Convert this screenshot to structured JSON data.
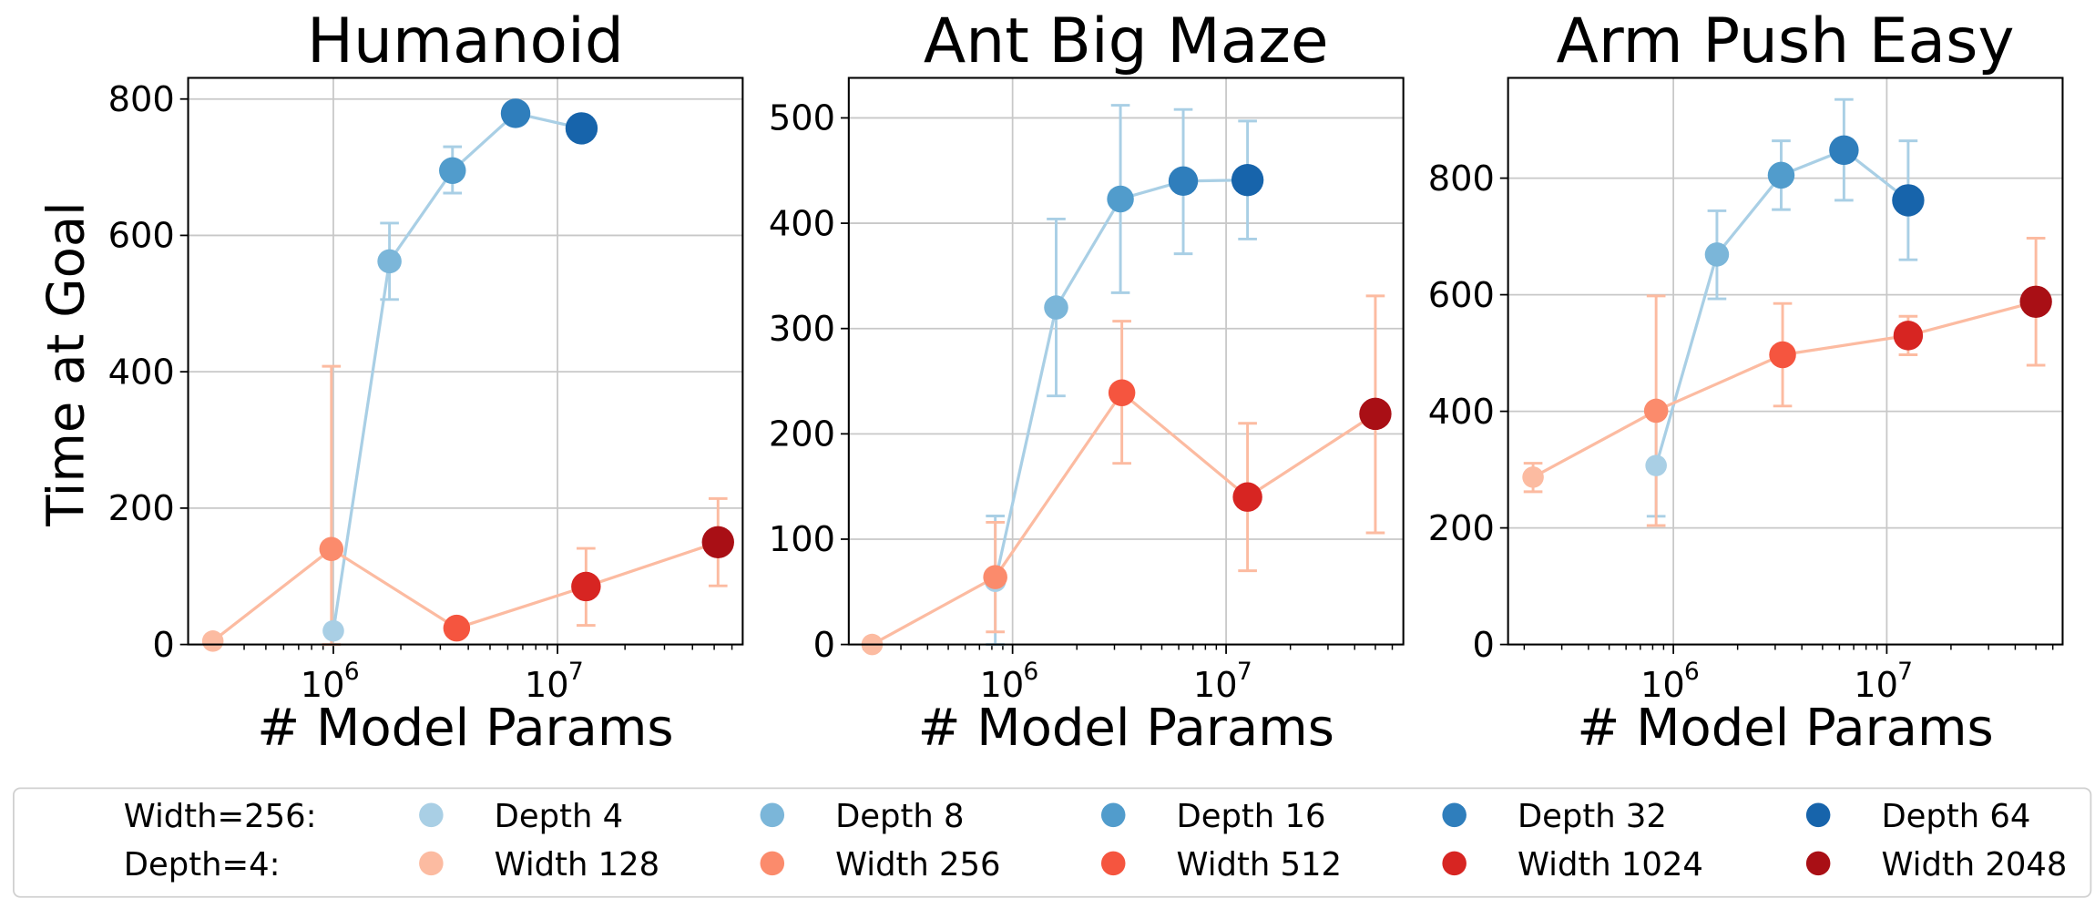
{
  "legend": {
    "row_labels": [
      "Width=256:",
      "Depth=4:"
    ],
    "depth_entries": [
      {
        "label": "Depth 4",
        "color": "#a9cfe5"
      },
      {
        "label": "Depth 8",
        "color": "#7bb6d9"
      },
      {
        "label": "Depth 16",
        "color": "#519ccc"
      },
      {
        "label": "Depth 32",
        "color": "#2f7ebc"
      },
      {
        "label": "Depth 64",
        "color": "#1764ab"
      }
    ],
    "width_entries": [
      {
        "label": "Width 128",
        "color": "#fcbba1"
      },
      {
        "label": "Width 256",
        "color": "#fb8b6c"
      },
      {
        "label": "Width 512",
        "color": "#f5553f"
      },
      {
        "label": "Width 1024",
        "color": "#d72522"
      },
      {
        "label": "Width 2048",
        "color": "#a90f15"
      }
    ]
  },
  "line_colors": {
    "depth": "#a9cfe5",
    "width": "#fcbba1"
  },
  "chart_data": [
    {
      "type": "line",
      "title": "Humanoid",
      "xlabel": "# Model Params",
      "ylabel": "Time at Goal",
      "xscale": "log",
      "xlim": [
        225000,
        67000000
      ],
      "ylim": [
        0,
        831
      ],
      "yticks": [
        0,
        200,
        400,
        600,
        800
      ],
      "xticks": [
        {
          "value": 1000000,
          "base": "10",
          "exp": "6"
        },
        {
          "value": 10000000,
          "base": "10",
          "exp": "7"
        }
      ],
      "grid": true,
      "series": [
        {
          "name": "Depth (Width=256)",
          "points": [
            {
              "x": 1000000,
              "y": 20,
              "err": null
            },
            {
              "x": 1780000,
              "y": 562,
              "err": [
                506,
                618
              ]
            },
            {
              "x": 3400000,
              "y": 695,
              "err": [
                662,
                730
              ]
            },
            {
              "x": 6500000,
              "y": 779,
              "err": null
            },
            {
              "x": 12800000,
              "y": 757,
              "err": null
            }
          ]
        },
        {
          "name": "Width (Depth=4)",
          "points": [
            {
              "x": 290000,
              "y": 5,
              "err": null
            },
            {
              "x": 980000,
              "y": 140,
              "err": [
                0,
                408
              ]
            },
            {
              "x": 3550000,
              "y": 24,
              "err": null
            },
            {
              "x": 13400000,
              "y": 85,
              "err": [
                28,
                141
              ]
            },
            {
              "x": 52000000,
              "y": 150,
              "err": [
                86,
                214
              ]
            }
          ]
        }
      ]
    },
    {
      "type": "line",
      "title": "Ant Big Maze",
      "xlabel": "# Model Params",
      "xscale": "log",
      "xlim": [
        171000,
        67600000
      ],
      "ylim": [
        0,
        538
      ],
      "yticks": [
        0,
        100,
        200,
        300,
        400,
        500
      ],
      "xticks": [
        {
          "value": 1000000,
          "base": "10",
          "exp": "6"
        },
        {
          "value": 10000000,
          "base": "10",
          "exp": "7"
        }
      ],
      "grid": true,
      "series": [
        {
          "name": "Depth (Width=256)",
          "points": [
            {
              "x": 830000,
              "y": 60,
              "err": [
                0,
                122
              ]
            },
            {
              "x": 1600000,
              "y": 320,
              "err": [
                236,
                404
              ]
            },
            {
              "x": 3200000,
              "y": 423,
              "err": [
                334,
                512
              ]
            },
            {
              "x": 6300000,
              "y": 440,
              "err": [
                371,
                508
              ]
            },
            {
              "x": 12600000,
              "y": 441,
              "err": [
                385,
                497
              ]
            }
          ]
        },
        {
          "name": "Width (Depth=4)",
          "points": [
            {
              "x": 220000,
              "y": 0,
              "err": null
            },
            {
              "x": 830000,
              "y": 64,
              "err": [
                12,
                116
              ]
            },
            {
              "x": 3250000,
              "y": 239,
              "err": [
                172,
                307
              ]
            },
            {
              "x": 12600000,
              "y": 140,
              "err": [
                70,
                210
              ]
            },
            {
              "x": 50000000,
              "y": 219,
              "err": [
                106,
                331
              ]
            }
          ]
        }
      ]
    },
    {
      "type": "line",
      "title": "Arm Push Easy",
      "xlabel": "# Model Params",
      "xscale": "log",
      "xlim": [
        168000,
        66700000
      ],
      "ylim": [
        0,
        972
      ],
      "yticks": [
        0,
        200,
        400,
        600,
        800
      ],
      "xticks": [
        {
          "value": 1000000,
          "base": "10",
          "exp": "6"
        },
        {
          "value": 10000000,
          "base": "10",
          "exp": "7"
        }
      ],
      "grid": true,
      "series": [
        {
          "name": "Depth (Width=256)",
          "points": [
            {
              "x": 830000,
              "y": 307,
              "err": [
                220,
                395
              ]
            },
            {
              "x": 1600000,
              "y": 669,
              "err": [
                593,
                744
              ]
            },
            {
              "x": 3200000,
              "y": 805,
              "err": [
                746,
                864
              ]
            },
            {
              "x": 6300000,
              "y": 848,
              "err": [
                762,
                935
              ]
            },
            {
              "x": 12600000,
              "y": 762,
              "err": [
                660,
                864
              ]
            }
          ]
        },
        {
          "name": "Width (Depth=4)",
          "points": [
            {
              "x": 220000,
              "y": 287,
              "err": [
                262,
                311
              ]
            },
            {
              "x": 830000,
              "y": 401,
              "err": [
                204,
                598
              ]
            },
            {
              "x": 3250000,
              "y": 497,
              "err": [
                409,
                585
              ]
            },
            {
              "x": 12600000,
              "y": 530,
              "err": [
                497,
                563
              ]
            },
            {
              "x": 50000000,
              "y": 588,
              "err": [
                479,
                697
              ]
            }
          ]
        }
      ]
    }
  ]
}
